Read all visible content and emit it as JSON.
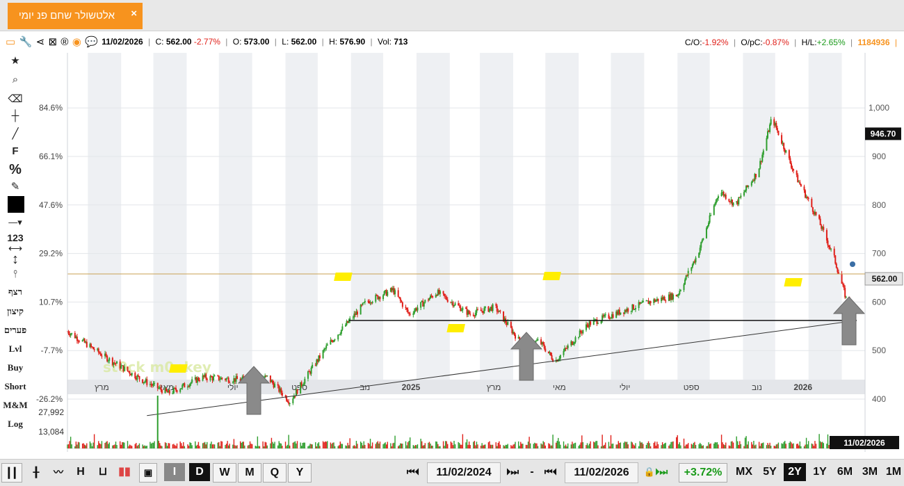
{
  "tab": {
    "title": "אלטשולר שחם פנ יומי",
    "close": "×"
  },
  "info": {
    "date": "11/02/2026",
    "c_label": "C:",
    "c_value": "562.00",
    "c_change": "-2.77%",
    "o_label": "O:",
    "o_value": "573.00",
    "l_label": "L:",
    "l_value": "562.00",
    "h_label": "H:",
    "h_value": "576.90",
    "vol_label": "Vol:",
    "vol_value": "713",
    "co_label": "C/O:",
    "co_value": "-1.92%",
    "opc_label": "O/pC:",
    "opc_value": "-0.87%",
    "hl_label": "H/L:",
    "hl_value": "+2.65%",
    "id": "1184936"
  },
  "tools": {
    "f": "F",
    "percent": "%",
    "num": "123",
    "continuous": "רצף",
    "extremes": "קיצון",
    "gaps": "פערים",
    "lvl": "Lvl",
    "buy": "Buy",
    "short": "Short",
    "mm": "M&M",
    "log": "Log"
  },
  "watermark": "st0ck m0nkey",
  "bottom": {
    "candles": "I",
    "period_d": "D",
    "period_w": "W",
    "period_m": "M",
    "period_q": "Q",
    "period_y": "Y",
    "date_from": "11/02/2024",
    "date_to": "11/02/2026",
    "dash": "-",
    "range_change": "+3.72%",
    "r_mx": "MX",
    "r_5y": "5Y",
    "r_2y": "2Y",
    "r_1y": "1Y",
    "r_6m": "6M",
    "r_3m": "3M",
    "r_1m": "1M",
    "h": "H"
  },
  "colors": {
    "up": "#2e9e2e",
    "down": "#e0201a",
    "accent": "#f7931e",
    "highlight": "#ffee00",
    "hline": "#c8a050"
  },
  "chart_data": {
    "type": "candlestick",
    "y_right_ticks": [
      "1,000",
      "900",
      "800",
      "700",
      "600",
      "500",
      "400"
    ],
    "y_right_values": [
      1000,
      900,
      800,
      700,
      600,
      500,
      400
    ],
    "y_left_ticks": [
      "84.6%",
      "66.1%",
      "47.6%",
      "29.2%",
      "10.7%",
      "-7.7%",
      "-26.2%"
    ],
    "x_labels": [
      "מרץ",
      "מאי",
      "יולי",
      "ספט",
      "נוב",
      "2025",
      "מרץ",
      "מאי",
      "יולי",
      "ספט",
      "נוב",
      "2026"
    ],
    "x_bold": [
      false,
      false,
      false,
      false,
      false,
      true,
      false,
      false,
      false,
      false,
      false,
      true
    ],
    "last_price_label": "562.00",
    "last_price": 562,
    "max_label": "946.70",
    "max_marker": 946.7,
    "horizontal_level": 562,
    "trendline": {
      "from": {
        "date": "2024-04",
        "value": 366
      },
      "to": {
        "date": "2026-02-11",
        "value": 562
      }
    },
    "highlights": [
      "2024-09",
      "2024-12",
      "2025-06",
      "2025-07",
      "2026-02"
    ],
    "price_path": [
      {
        "t": "2024-02-11",
        "v": 540
      },
      {
        "t": "2024-03-15",
        "v": 490
      },
      {
        "t": "2024-04-20",
        "v": 440
      },
      {
        "t": "2024-05-15",
        "v": 412
      },
      {
        "t": "2024-06-15",
        "v": 445
      },
      {
        "t": "2024-07-20",
        "v": 440
      },
      {
        "t": "2024-08-15",
        "v": 445
      },
      {
        "t": "2024-09-05",
        "v": 395
      },
      {
        "t": "2024-10-10",
        "v": 510
      },
      {
        "t": "2024-11-15",
        "v": 600
      },
      {
        "t": "2024-12-10",
        "v": 625
      },
      {
        "t": "2024-12-25",
        "v": 575
      },
      {
        "t": "2025-01-20",
        "v": 620
      },
      {
        "t": "2025-02-20",
        "v": 575
      },
      {
        "t": "2025-03-15",
        "v": 590
      },
      {
        "t": "2025-04-10",
        "v": 510
      },
      {
        "t": "2025-04-25",
        "v": 520
      },
      {
        "t": "2025-05-10",
        "v": 478
      },
      {
        "t": "2025-06-10",
        "v": 555
      },
      {
        "t": "2025-07-10",
        "v": 580
      },
      {
        "t": "2025-08-05",
        "v": 600
      },
      {
        "t": "2025-09-01",
        "v": 615
      },
      {
        "t": "2025-09-20",
        "v": 700
      },
      {
        "t": "2025-10-10",
        "v": 830
      },
      {
        "t": "2025-10-25",
        "v": 800
      },
      {
        "t": "2025-11-15",
        "v": 870
      },
      {
        "t": "2025-11-28",
        "v": 980
      },
      {
        "t": "2025-12-20",
        "v": 860
      },
      {
        "t": "2026-01-10",
        "v": 770
      },
      {
        "t": "2026-01-25",
        "v": 690
      },
      {
        "t": "2026-02-11",
        "v": 562
      }
    ],
    "volume": {
      "ticks": [
        "27,992",
        "13,084"
      ],
      "tick_values": [
        27992,
        13084
      ],
      "spike": 27992,
      "date_label": "11/02/2026"
    }
  }
}
